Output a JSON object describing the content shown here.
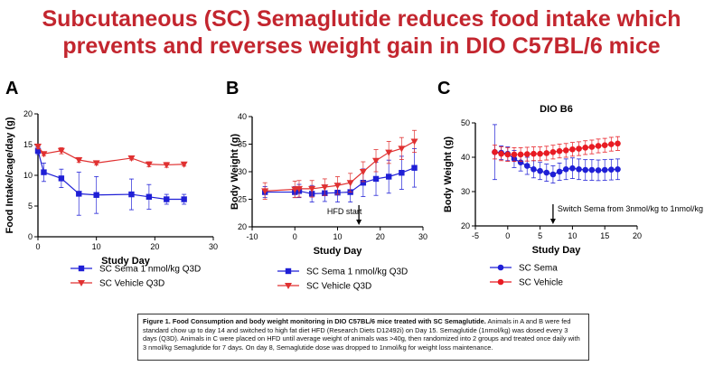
{
  "title": {
    "line1": "Subcutaneous (SC) Semaglutide reduces food intake which",
    "line2": "prevents and reverses weight gain in DIO C57BL/6 mice"
  },
  "colors": {
    "title": "#c3262f",
    "sema": "#1f1fd6",
    "vehicle": "#e03131",
    "vehicleC": "#e81b23"
  },
  "chart_data": [
    {
      "panel": "A",
      "type": "line",
      "xlabel": "Study Day",
      "ylabel": "Food Intake/cage/day (g)",
      "xlim": [
        0,
        30
      ],
      "ylim": [
        0,
        20
      ],
      "xticks": [
        0,
        10,
        20,
        30
      ],
      "yticks": [
        0,
        5,
        10,
        15,
        20
      ],
      "series": [
        {
          "name": "SC Sema 1 nmol/kg Q3D",
          "color": "#1f1fd6",
          "marker": "square",
          "x": [
            0,
            1,
            4,
            7,
            10,
            16,
            19,
            22,
            25
          ],
          "y": [
            14,
            10.5,
            9.5,
            7.0,
            6.8,
            6.9,
            6.5,
            6.1,
            6.1
          ],
          "err": [
            0.6,
            1.5,
            1.5,
            3.5,
            3.0,
            2.5,
            2.0,
            0.8,
            0.8
          ]
        },
        {
          "name": "SC Vehicle Q3D",
          "color": "#e03131",
          "marker": "triangle-down",
          "x": [
            0,
            1,
            4,
            7,
            10,
            16,
            19,
            22,
            25
          ],
          "y": [
            14.7,
            13.5,
            14.0,
            12.5,
            12.0,
            12.8,
            11.8,
            11.7,
            11.8
          ],
          "err": [
            0.4,
            0.3,
            0.5,
            0.4,
            0.3,
            0.3,
            0.4,
            0.4,
            0.3
          ]
        }
      ]
    },
    {
      "panel": "B",
      "type": "line",
      "xlabel": "Study Day",
      "ylabel": "Body Weight (g)",
      "xlim": [
        -10,
        30
      ],
      "ylim": [
        20,
        40
      ],
      "xticks": [
        -10,
        0,
        10,
        20,
        30
      ],
      "yticks": [
        20,
        25,
        30,
        35,
        40
      ],
      "annotation": {
        "text": "HFD start",
        "x": 15
      },
      "series": [
        {
          "name": "SC Sema 1 nmol/kg Q3D",
          "color": "#1f1fd6",
          "marker": "square",
          "x": [
            -7,
            0,
            1,
            4,
            7,
            10,
            13,
            16,
            19,
            22,
            25,
            28
          ],
          "y": [
            26.3,
            26.3,
            26.5,
            26.0,
            26.1,
            26.2,
            26.3,
            28.0,
            28.7,
            29.1,
            29.8,
            30.7
          ],
          "err": [
            1.0,
            1.0,
            1.2,
            1.5,
            1.5,
            1.7,
            1.8,
            2.5,
            3.0,
            3.0,
            3.0,
            3.5
          ]
        },
        {
          "name": "SC Vehicle Q3D",
          "color": "#e03131",
          "marker": "triangle-down",
          "x": [
            -7,
            0,
            1,
            4,
            7,
            10,
            13,
            16,
            19,
            22,
            25,
            28
          ],
          "y": [
            26.5,
            26.8,
            26.9,
            26.9,
            27.2,
            27.5,
            28.0,
            30.0,
            32.0,
            33.5,
            34.2,
            35.5
          ],
          "err": [
            1.5,
            1.5,
            1.5,
            1.5,
            1.5,
            1.6,
            1.7,
            1.8,
            2.0,
            2.0,
            2.0,
            2.0
          ]
        }
      ]
    },
    {
      "panel": "C",
      "type": "line",
      "title": "DIO B6",
      "xlabel": "Study Day",
      "ylabel": "Body Weight (g)",
      "xlim": [
        -5,
        20
      ],
      "ylim": [
        20,
        50
      ],
      "xticks": [
        -5,
        0,
        5,
        10,
        15,
        20
      ],
      "yticks": [
        20,
        30,
        40,
        50
      ],
      "annotation": {
        "text": "Switch Sema from 3nmol/kg to 1nmol/kg",
        "x": 7
      },
      "series": [
        {
          "name": "SC Sema",
          "color": "#1f1fd6",
          "marker": "circle",
          "x": [
            -2,
            -1,
            0,
            1,
            2,
            3,
            4,
            5,
            6,
            7,
            8,
            9,
            10,
            11,
            12,
            13,
            14,
            15,
            16,
            17
          ],
          "y": [
            41.5,
            41.3,
            41.0,
            39.5,
            38.5,
            37.5,
            36.5,
            36.0,
            35.5,
            35.0,
            35.8,
            36.5,
            36.8,
            36.5,
            36.3,
            36.3,
            36.2,
            36.3,
            36.4,
            36.5
          ],
          "err": [
            8.0,
            2.0,
            2.0,
            2.5,
            2.5,
            2.5,
            2.5,
            2.5,
            2.5,
            2.5,
            2.5,
            3.0,
            3.0,
            3.0,
            3.0,
            3.0,
            3.0,
            3.0,
            3.0,
            3.0
          ]
        },
        {
          "name": "SC Vehicle",
          "color": "#e81b23",
          "marker": "circle",
          "x": [
            -2,
            -1,
            0,
            1,
            2,
            3,
            4,
            5,
            6,
            7,
            8,
            9,
            10,
            11,
            12,
            13,
            14,
            15,
            16,
            17
          ],
          "y": [
            41.5,
            41.0,
            40.8,
            40.8,
            40.8,
            40.9,
            41.0,
            41.0,
            41.2,
            41.5,
            41.8,
            42.0,
            42.3,
            42.5,
            42.8,
            43.0,
            43.3,
            43.5,
            43.8,
            44.0
          ],
          "err": [
            2.0,
            2.0,
            2.0,
            2.0,
            2.0,
            2.0,
            2.0,
            2.0,
            2.0,
            2.0,
            2.0,
            2.0,
            2.0,
            2.0,
            2.0,
            2.0,
            2.0,
            2.0,
            2.0,
            2.0
          ]
        }
      ]
    }
  ],
  "caption": {
    "bold": "Figure 1. Food Consumption and body weight monitoring in DIO C57BL/6 mice treated with SC Semaglutide.",
    "text": " Animals in A and B were fed standard chow up to day 14 and switched to high fat diet HFD (Research Diets D12492i) on Day 15. Semaglutide (1nmol/kg) was dosed every 3 days (Q3D). Animals in C were placed on HFD until average weight of animals was >40g, then randomized into 2 groups and treated once daily with 3 nmol/kg Semaglutide for 7 days. On day 8, Semaglutide dose was dropped to 1nmol/kg for weight loss maintenance."
  }
}
